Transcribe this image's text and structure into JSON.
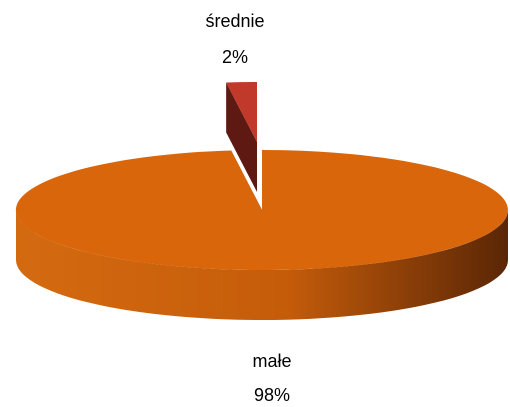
{
  "chart_data": {
    "type": "pie",
    "categories": [
      "małe",
      "średnie"
    ],
    "values": [
      98,
      2
    ],
    "value_labels": [
      "98%",
      "2%"
    ],
    "colors": [
      "#d9660b",
      "#c0392b"
    ]
  }
}
